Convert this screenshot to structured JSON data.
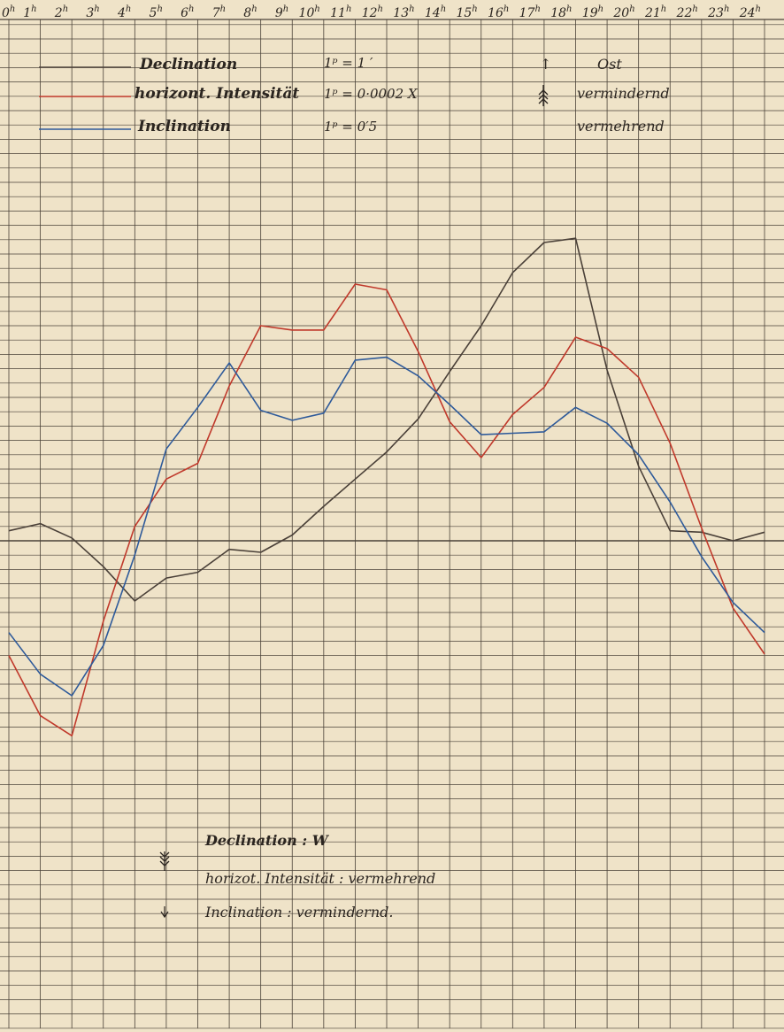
{
  "hour_suffix": "h",
  "legend": {
    "declination": {
      "name": "Declination",
      "scale": "1ᵖ = 1 ′",
      "direction_symbol": "↑",
      "direction": "Ost"
    },
    "horizontal_intensity": {
      "name": "horizont. Intensität",
      "scale": "1ᵖ = 0·0002 X",
      "direction": "vermindernd"
    },
    "inclination": {
      "name": "Inclination",
      "scale": "1ᵖ = 0′5",
      "direction": "vermehrend"
    }
  },
  "bottom_notes": {
    "declination": "Declination : W",
    "horizontal_intensity": "horizot. Intensität : vermehrend",
    "inclination": "Inclination : vermindernd."
  },
  "colors": {
    "paper": "#efe3c8",
    "grid": "#4a4238",
    "declination": "#4a4038",
    "horizontal_intensity": "#c0392b",
    "inclination": "#2e5a9a"
  },
  "chart_data": {
    "type": "line",
    "x": [
      0,
      1,
      2,
      3,
      4,
      5,
      6,
      7,
      8,
      9,
      10,
      11,
      12,
      13,
      14,
      15,
      16,
      17,
      18,
      19,
      20,
      21,
      22,
      23,
      24
    ],
    "xlim": [
      0,
      24
    ],
    "ylim": [
      -14,
      30
    ],
    "baseline": 0,
    "grid": true,
    "series": [
      {
        "name": "Declination",
        "color": "#4a4038",
        "values": [
          0.7,
          1.2,
          0.2,
          -1.8,
          -4.2,
          -2.6,
          -2.2,
          -0.6,
          -0.8,
          0.4,
          2.4,
          4.3,
          6.2,
          8.5,
          11.8,
          15.0,
          18.7,
          20.8,
          21.1,
          11.9,
          5.2,
          0.7,
          0.6,
          0.0,
          0.6
        ]
      },
      {
        "name": "horizont. Intensität",
        "color": "#c0392b",
        "values": [
          -8.0,
          -12.2,
          -13.6,
          -5.6,
          1.0,
          4.3,
          5.4,
          10.8,
          15.0,
          14.7,
          14.7,
          17.9,
          17.5,
          13.2,
          8.3,
          5.8,
          8.8,
          10.7,
          14.2,
          13.4,
          11.4,
          6.8,
          0.9,
          -4.7,
          -7.9
        ]
      },
      {
        "name": "Inclination",
        "color": "#2e5a9a",
        "values": [
          -6.4,
          -9.3,
          -10.8,
          -7.3,
          -1.0,
          6.4,
          9.3,
          12.4,
          9.1,
          8.4,
          8.9,
          12.6,
          12.8,
          11.5,
          9.5,
          7.4,
          7.5,
          7.6,
          9.3,
          8.2,
          6.0,
          2.7,
          -1.1,
          -4.3,
          -6.4
        ]
      }
    ]
  }
}
